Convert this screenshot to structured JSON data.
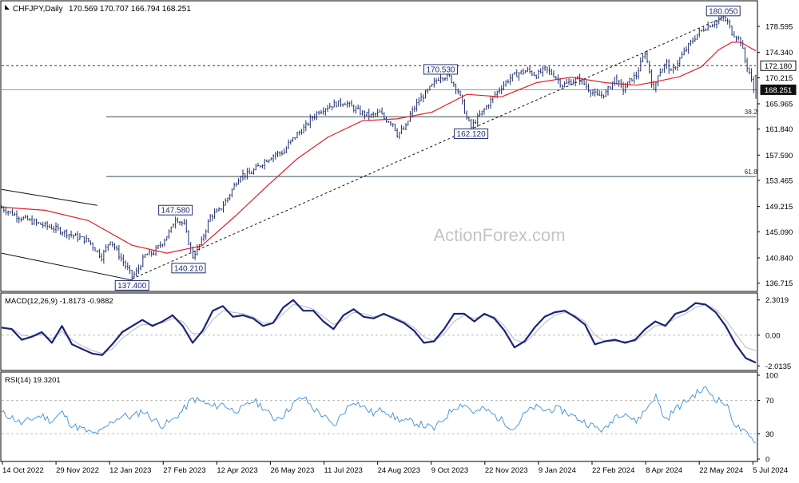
{
  "header": {
    "symbol": "CHFJPY,Daily",
    "ohlc": "170.569 170.707 166.794 168.251"
  },
  "watermark": "ActionForex.com",
  "colors": {
    "candle": "#1f2e6e",
    "ma": "#e0202a",
    "trendline": "#111111",
    "fib": "#3a4f5a",
    "macd": "#1a237e",
    "signal": "#b8b8b8",
    "rsi": "#3d8fd8",
    "price_box": "#1f2e6e"
  },
  "chart_data": [
    {
      "type": "candlestick",
      "panel": "price",
      "ylim": [
        135.5,
        182.5
      ],
      "y_ticks": [
        {
          "label": "178.595",
          "value": 178.595
        },
        {
          "label": "174.340",
          "value": 174.34
        },
        {
          "label": "170.215",
          "value": 170.215
        },
        {
          "label": "165.965",
          "value": 165.965
        },
        {
          "label": "161.840",
          "value": 161.84
        },
        {
          "label": "157.590",
          "value": 157.59
        },
        {
          "label": "153.465",
          "value": 153.465
        },
        {
          "label": "149.215",
          "value": 149.215
        },
        {
          "label": "145.090",
          "value": 145.09
        },
        {
          "label": "140.840",
          "value": 140.84
        },
        {
          "label": "136.715",
          "value": 136.715
        }
      ],
      "x_labels": [
        "14 Oct 2022",
        "29 Nov 2022",
        "12 Jan 2023",
        "27 Feb 2023",
        "12 Apr 2023",
        "26 May 2023",
        "11 Jul 2023",
        "24 Aug 2023",
        "9 Oct 2023",
        "22 Nov 2023",
        "9 Jan 2024",
        "22 Feb 2024",
        "8 Apr 2024",
        "22 May 2024",
        "5 Jul 2024"
      ],
      "close_path": [
        [
          0,
          149.0
        ],
        [
          8,
          147.5
        ],
        [
          16,
          146.5
        ],
        [
          24,
          145.7
        ],
        [
          32,
          144.6
        ],
        [
          40,
          143.6
        ],
        [
          46,
          141.0
        ],
        [
          50,
          143.8
        ],
        [
          54,
          141.3
        ],
        [
          60,
          137.8
        ],
        [
          62,
          138.5
        ],
        [
          66,
          141.2
        ],
        [
          70,
          141.7
        ],
        [
          74,
          143.4
        ],
        [
          78,
          145.5
        ],
        [
          80,
          147.4
        ],
        [
          84,
          146.2
        ],
        [
          86,
          143.4
        ],
        [
          88,
          141.1
        ],
        [
          92,
          143.5
        ],
        [
          96,
          147.6
        ],
        [
          100,
          148.5
        ],
        [
          104,
          150.6
        ],
        [
          108,
          153.3
        ],
        [
          110,
          154.4
        ],
        [
          114,
          154.5
        ],
        [
          118,
          155.7
        ],
        [
          122,
          156.9
        ],
        [
          126,
          157.8
        ],
        [
          130,
          158.1
        ],
        [
          132,
          159.4
        ],
        [
          136,
          161.0
        ],
        [
          140,
          162.3
        ],
        [
          142,
          163.4
        ],
        [
          146,
          164.8
        ],
        [
          150,
          165.5
        ],
        [
          154,
          166.0
        ],
        [
          158,
          166.2
        ],
        [
          162,
          165.2
        ],
        [
          166,
          164.4
        ],
        [
          170,
          164.0
        ],
        [
          174,
          164.5
        ],
        [
          176,
          163.6
        ],
        [
          180,
          162.8
        ],
        [
          182,
          161.0
        ],
        [
          186,
          162.1
        ],
        [
          188,
          164.2
        ],
        [
          192,
          166.5
        ],
        [
          196,
          168.0
        ],
        [
          200,
          169.8
        ],
        [
          202,
          170.5
        ],
        [
          206,
          170.3
        ],
        [
          210,
          168.1
        ],
        [
          212,
          166.0
        ],
        [
          214,
          163.6
        ],
        [
          216,
          162.1
        ],
        [
          218,
          163.2
        ],
        [
          222,
          165.0
        ],
        [
          226,
          167.0
        ],
        [
          230,
          168.8
        ],
        [
          234,
          170.2
        ],
        [
          238,
          171.0
        ],
        [
          242,
          171.4
        ],
        [
          246,
          170.6
        ],
        [
          250,
          171.6
        ],
        [
          254,
          170.7
        ],
        [
          258,
          169.0
        ],
        [
          262,
          169.6
        ],
        [
          266,
          170.0
        ],
        [
          270,
          168.4
        ],
        [
          274,
          167.2
        ],
        [
          278,
          167.7
        ],
        [
          282,
          170.1
        ],
        [
          286,
          168.3
        ],
        [
          290,
          170.1
        ],
        [
          292,
          170.6
        ],
        [
          296,
          174.4
        ],
        [
          298,
          171.3
        ],
        [
          300,
          167.9
        ],
        [
          302,
          170.9
        ],
        [
          306,
          172.6
        ],
        [
          308,
          171.0
        ],
        [
          312,
          173.3
        ],
        [
          316,
          175.4
        ],
        [
          320,
          177.3
        ],
        [
          324,
          178.5
        ],
        [
          328,
          179.2
        ],
        [
          332,
          180.0
        ],
        [
          334,
          179.2
        ],
        [
          336,
          177.6
        ],
        [
          338,
          177.0
        ],
        [
          340,
          176.2
        ],
        [
          342,
          173.0
        ],
        [
          344,
          171.1
        ],
        [
          346,
          168.3
        ],
        [
          347,
          168.25
        ]
      ],
      "ma_path": [
        [
          0,
          149.1
        ],
        [
          20,
          148.6
        ],
        [
          40,
          146.9
        ],
        [
          60,
          142.9
        ],
        [
          76,
          141.6
        ],
        [
          92,
          142.8
        ],
        [
          108,
          147.8
        ],
        [
          122,
          152.5
        ],
        [
          136,
          157.0
        ],
        [
          150,
          160.5
        ],
        [
          166,
          163.2
        ],
        [
          182,
          163.5
        ],
        [
          198,
          164.6
        ],
        [
          214,
          167.5
        ],
        [
          230,
          167.1
        ],
        [
          246,
          169.4
        ],
        [
          262,
          170.3
        ],
        [
          278,
          169.4
        ],
        [
          292,
          169.0
        ],
        [
          300,
          169.5
        ],
        [
          312,
          170.4
        ],
        [
          322,
          172.0
        ],
        [
          330,
          174.8
        ],
        [
          336,
          176.0
        ],
        [
          340,
          176.0
        ],
        [
          344,
          175.2
        ],
        [
          347,
          174.6
        ]
      ],
      "levels": [
        {
          "name": "resistance",
          "label": "172.180",
          "value": 172.18,
          "style": "dotted"
        },
        {
          "name": "current-price",
          "label": "168.251",
          "value": 168.251,
          "style": "solid"
        },
        {
          "name": "fib-38",
          "label": "38.2",
          "value": 163.85,
          "style": "solid"
        },
        {
          "name": "fib-61",
          "label": "61.8",
          "value": 154.1,
          "style": "solid"
        }
      ],
      "annotations": [
        {
          "label": "180.050",
          "x": 332,
          "value": 180.05,
          "place": "above"
        },
        {
          "label": "170.530",
          "x": 202,
          "value": 170.53,
          "place": "above"
        },
        {
          "label": "162.120",
          "x": 216,
          "value": 162.12,
          "place": "below"
        },
        {
          "label": "147.580",
          "x": 80,
          "value": 147.58,
          "place": "above"
        },
        {
          "label": "140.210",
          "x": 86,
          "value": 140.21,
          "place": "below"
        },
        {
          "label": "137.400",
          "x": 60,
          "value": 137.4,
          "place": "below"
        }
      ],
      "trendlines": [
        {
          "from": [
            0,
            152.0
          ],
          "to": [
            44,
            149.4
          ],
          "style": "solid"
        },
        {
          "from": [
            0,
            141.6
          ],
          "to": [
            60,
            137.2
          ],
          "style": "solid"
        },
        {
          "from": [
            60,
            137.4
          ],
          "to": [
            332,
            180.05
          ],
          "style": "dashed"
        }
      ]
    },
    {
      "type": "line",
      "panel": "macd",
      "title": "MACD(12,26,9) -1.8173 -0.9882",
      "ylim": [
        -2.2,
        2.6
      ],
      "y_ticks": [
        {
          "label": "2.3019",
          "value": 2.3019
        },
        {
          "label": "0.00",
          "value": 0
        },
        {
          "label": "-2.0135",
          "value": -2.0135
        }
      ],
      "series": [
        {
          "role": "macd",
          "values": [
            0.5,
            0.4,
            -0.3,
            -0.1,
            0.2,
            -0.5,
            0.6,
            -0.6,
            -0.9,
            -1.2,
            -1.3,
            -0.6,
            0.2,
            0.6,
            1.0,
            0.6,
            0.9,
            1.3,
            0.6,
            -0.5,
            0.3,
            1.6,
            1.9,
            1.2,
            1.3,
            1.1,
            0.6,
            0.8,
            1.8,
            2.3,
            1.6,
            1.6,
            0.9,
            0.4,
            1.3,
            1.7,
            1.2,
            1.1,
            1.4,
            1.1,
            0.8,
            0.3,
            -0.5,
            -0.4,
            0.4,
            1.4,
            1.4,
            0.9,
            1.4,
            1.1,
            0.3,
            -0.8,
            -0.4,
            0.5,
            1.2,
            1.5,
            1.6,
            1.2,
            0.7,
            -0.6,
            -0.4,
            -0.3,
            -0.5,
            -0.3,
            0.4,
            0.9,
            0.6,
            1.4,
            1.6,
            2.1,
            2.0,
            1.5,
            0.6,
            -0.6,
            -1.5,
            -1.8
          ]
        },
        {
          "role": "signal",
          "values": [
            0.45,
            0.45,
            0.0,
            -0.1,
            0.05,
            -0.25,
            0.25,
            -0.3,
            -0.7,
            -1.0,
            -1.2,
            -0.9,
            -0.2,
            0.3,
            0.7,
            0.7,
            0.8,
            1.1,
            0.9,
            0.1,
            0.1,
            1.0,
            1.6,
            1.5,
            1.4,
            1.2,
            0.8,
            0.8,
            1.4,
            2.0,
            1.9,
            1.7,
            1.2,
            0.7,
            1.0,
            1.5,
            1.4,
            1.2,
            1.3,
            1.2,
            0.9,
            0.5,
            -0.1,
            -0.4,
            0.1,
            0.9,
            1.3,
            1.1,
            1.3,
            1.2,
            0.6,
            -0.3,
            -0.5,
            0.1,
            0.8,
            1.3,
            1.5,
            1.3,
            0.9,
            0.0,
            -0.4,
            -0.4,
            -0.4,
            -0.4,
            0.1,
            0.6,
            0.7,
            1.1,
            1.4,
            1.8,
            2.0,
            1.7,
            1.0,
            0.1,
            -0.8,
            -1.0
          ]
        }
      ]
    },
    {
      "type": "line",
      "panel": "rsi",
      "title": "RSI(14) 19.3201",
      "ylim": [
        0,
        100
      ],
      "y_ticks": [
        {
          "label": "100",
          "value": 100
        },
        {
          "label": "70",
          "value": 70
        },
        {
          "label": "30",
          "value": 30
        },
        {
          "label": "0",
          "value": 0
        }
      ],
      "guides": [
        70,
        30
      ],
      "series": [
        {
          "role": "rsi",
          "values": [
            55,
            50,
            42,
            48,
            52,
            45,
            56,
            40,
            36,
            30,
            33,
            45,
            52,
            50,
            58,
            48,
            40,
            46,
            58,
            72,
            68,
            62,
            66,
            58,
            60,
            70,
            62,
            48,
            52,
            66,
            74,
            60,
            52,
            38,
            56,
            70,
            62,
            54,
            60,
            50,
            45,
            44,
            40,
            36,
            48,
            62,
            66,
            55,
            60,
            52,
            44,
            36,
            54,
            62,
            58,
            60,
            57,
            50,
            44,
            38,
            34,
            52,
            56,
            44,
            58,
            76,
            46,
            60,
            68,
            78,
            84,
            72,
            66,
            40,
            30,
            19
          ]
        }
      ]
    }
  ]
}
